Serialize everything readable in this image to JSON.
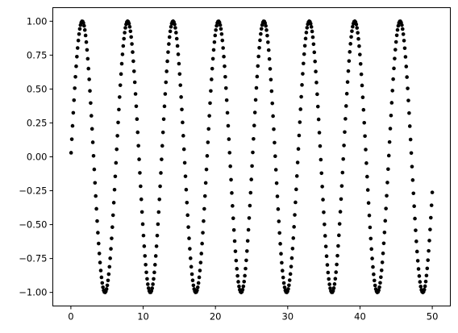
{
  "chart_data": {
    "type": "scatter",
    "title": "",
    "xlabel": "",
    "ylabel": "",
    "xlim": [
      -2.5,
      52.5
    ],
    "ylim": [
      -1.1,
      1.1
    ],
    "grid": false,
    "legend": false,
    "x_ticks": [
      0,
      10,
      20,
      30,
      40,
      50
    ],
    "x_tick_labels": [
      "0",
      "10",
      "20",
      "30",
      "40",
      "50"
    ],
    "y_ticks": [
      1.0,
      0.75,
      0.5,
      0.25,
      0.0,
      -0.25,
      -0.5,
      -0.75,
      -1.0
    ],
    "y_tick_labels": [
      "1.00",
      "0.75",
      "0.50",
      "0.25",
      "0.00",
      "−0.25",
      "−0.50",
      "−0.75",
      "−1.00"
    ],
    "marker_color": "#000000",
    "series": [
      {
        "function": "sin",
        "x_start": 0.03,
        "x_end": 50.0,
        "point_count": 500,
        "frequency": 1.0,
        "amplitude": 1.0
      }
    ]
  }
}
